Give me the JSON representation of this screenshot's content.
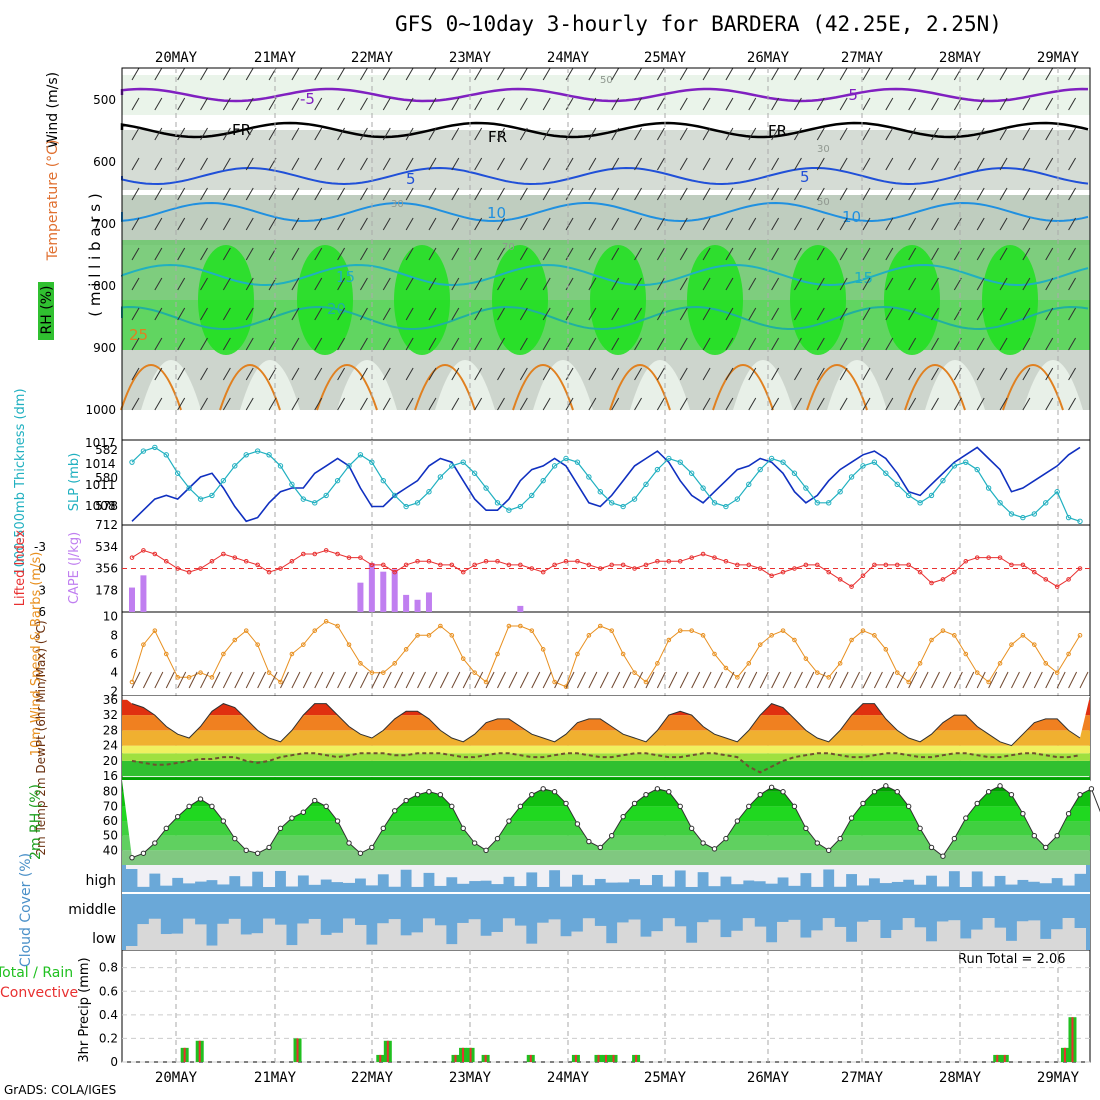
{
  "title": "GFS 0~10day 3-hourly for BARDERA (42.25E, 2.25N)",
  "credit": "GrADS: COLA/IGES",
  "run_total": "Run Total = 2.06",
  "colors": {
    "temp_contour": "#2a6ad6",
    "rh_green": "#00e000",
    "cape": "#c07ff0",
    "lifted": "#e83030",
    "wind10": "#e89020",
    "thickness": "#1030c0",
    "slp": "#20b0c0",
    "cloud": "#6aa8d8",
    "precip_total": "#20c020",
    "precip_conv": "#e83030"
  },
  "chart_data": [
    {
      "type": "heatmap",
      "name": "upper-air",
      "ylabel": "( m i l l i b a r s )",
      "side_labels": [
        "RH (%)",
        "Temperature (°C)",
        "Wind (m/s)"
      ],
      "y_ticks": [
        500,
        600,
        700,
        800,
        900,
        1000
      ],
      "x_ticks": [
        "20MAY",
        "21MAY",
        "22MAY",
        "23MAY",
        "24MAY",
        "25MAY",
        "26MAY",
        "27MAY",
        "28MAY",
        "29MAY"
      ],
      "contour_labels": [
        "-5",
        "FR",
        "5",
        "10",
        "15",
        "20",
        "25",
        "50",
        "30",
        "70"
      ]
    },
    {
      "type": "line",
      "name": "thickness-slp",
      "ylabel_left": "1000-500mb Thickness (dm)",
      "ylabel_right": "SLP (mb)",
      "left_ticks": [
        582,
        580,
        578
      ],
      "right_ticks": [
        1017,
        1014,
        1011,
        1008
      ],
      "series": [
        {
          "name": "1000-500mb Thickness (dm)",
          "values": [
            1006.5,
            1008,
            1009.5,
            1010,
            1009.5,
            1011,
            1012.5,
            1013,
            1011,
            1008.5,
            1006.5,
            1007,
            1009,
            1010.5,
            1011,
            1011,
            1013,
            1014,
            1015,
            1014,
            1011,
            1008.5,
            1008.5,
            1010,
            1011,
            1012,
            1014,
            1015,
            1014.5,
            1012,
            1009.5,
            1008,
            1008,
            1009.5,
            1012,
            1013.5,
            1014,
            1015,
            1014,
            1011.5,
            1009,
            1008.5,
            1010,
            1012,
            1014,
            1015,
            1016,
            1014.5,
            1012,
            1010,
            1009,
            1010.5,
            1012,
            1013.5,
            1014,
            1015,
            1014.5,
            1013,
            1010.5,
            1009,
            1010,
            1012,
            1013.5,
            1014.5,
            1015.5,
            1016,
            1015,
            1013,
            1010.5,
            1010,
            1011.5,
            1013,
            1014.5,
            1015.5,
            1016.5,
            1015,
            1013.5,
            1010.5,
            1011,
            1012,
            1013,
            1014,
            1015.5,
            1016.5
          ]
        },
        {
          "name": "SLP (mb)",
          "values": [
            1014.5,
            1016,
            1016.5,
            1015.5,
            1013,
            1011,
            1009.5,
            1010,
            1012,
            1014,
            1015.5,
            1016,
            1015.5,
            1014,
            1011.5,
            1009.5,
            1009,
            1010,
            1012,
            1014,
            1015.5,
            1014.5,
            1012,
            1010,
            1008.5,
            1009,
            1010.5,
            1012.5,
            1014,
            1014.5,
            1013,
            1011,
            1009,
            1008,
            1008.5,
            1010,
            1012,
            1014,
            1015,
            1014.5,
            1012.5,
            1010.5,
            1009,
            1008.5,
            1009.5,
            1011.5,
            1013.5,
            1015,
            1014.5,
            1013,
            1011,
            1009,
            1008.5,
            1009.5,
            1011.5,
            1013.5,
            1015,
            1014.5,
            1013,
            1011,
            1009,
            1009,
            1010.5,
            1012.5,
            1014,
            1014.5,
            1013,
            1011.5,
            1010,
            1009,
            1010,
            1012,
            1014,
            1014.5,
            1013.5,
            1011,
            1009,
            1007.5,
            1007,
            1007.5,
            1009,
            1010.5,
            1007,
            1006.5
          ]
        }
      ]
    },
    {
      "type": "bar",
      "name": "cape-lifted",
      "ylabel_left": "Lifted Index",
      "ylabel_right": "CAPE (J/kg)",
      "left_ticks": [
        -3,
        0,
        3,
        6
      ],
      "right_ticks": [
        712,
        534,
        356,
        178
      ],
      "series": [
        {
          "name": "CAPE (J/kg)",
          "values": [
            200,
            300,
            0,
            0,
            0,
            0,
            0,
            0,
            0,
            0,
            0,
            0,
            0,
            0,
            0,
            0,
            0,
            0,
            0,
            0,
            240,
            400,
            330,
            350,
            140,
            100,
            160,
            0,
            0,
            0,
            0,
            0,
            0,
            0,
            50,
            0,
            0,
            0,
            0,
            0,
            0,
            0,
            0,
            0,
            0,
            0,
            0,
            0,
            0,
            0,
            0,
            0,
            0,
            0,
            0,
            0,
            0,
            0,
            0,
            0,
            0,
            0,
            0,
            0,
            0,
            0,
            0,
            0,
            0,
            0,
            0,
            0,
            0,
            0,
            0,
            0,
            0,
            0,
            0,
            0,
            0,
            0,
            0,
            0
          ]
        },
        {
          "name": "Lifted Index",
          "values": [
            -1.5,
            -2.5,
            -2,
            -1,
            0,
            0.5,
            0,
            -1,
            -2,
            -1.5,
            -1,
            -0.5,
            0.5,
            0,
            -1,
            -2,
            -2,
            -2.5,
            -2,
            -1.5,
            -1.5,
            -0.5,
            -0.5,
            0.5,
            -0.5,
            -1,
            -1,
            -0.5,
            -0.5,
            0.5,
            -0.5,
            -1,
            -1,
            -0.5,
            -0.5,
            0,
            0.5,
            -0.5,
            -1,
            -1,
            -0.5,
            0,
            -0.5,
            -0.5,
            0,
            -0.5,
            -1,
            -1,
            -1,
            -1.5,
            -2,
            -1.5,
            -1,
            -0.5,
            -0.5,
            0,
            1,
            0.5,
            0,
            -0.5,
            -0.5,
            0.5,
            1.5,
            2.5,
            1,
            -0.5,
            -0.5,
            -0.5,
            -0.5,
            0.5,
            2,
            1.5,
            0.5,
            -1,
            -1.5,
            -1.5,
            -1.5,
            -0.5,
            -0.5,
            0.5,
            1.5,
            2.5,
            1.5,
            0
          ]
        }
      ]
    },
    {
      "type": "line",
      "name": "wind10m",
      "ylabel": "10m Wind Speed & Barbs (m/s)",
      "y_ticks": [
        10,
        8,
        6,
        4,
        2
      ],
      "series": [
        {
          "name": "10m Wind Speed",
          "values": [
            3,
            7,
            8.5,
            6,
            3.5,
            3.5,
            4,
            3.5,
            6,
            7.5,
            8.5,
            7,
            4,
            3,
            6,
            7,
            8.5,
            9.5,
            9,
            7,
            5,
            4,
            4,
            5,
            6.5,
            8,
            8,
            9,
            8,
            5.5,
            4,
            3,
            6,
            9,
            9,
            8.5,
            6.5,
            3,
            2.5,
            6,
            8,
            9,
            8.5,
            6,
            4,
            3,
            5,
            7.5,
            8.5,
            8.5,
            8,
            6,
            4.5,
            3.5,
            5,
            7,
            8,
            8.5,
            7.5,
            5.5,
            4,
            3.5,
            5,
            7.5,
            8.5,
            8,
            6.5,
            4,
            3,
            5,
            7.5,
            8.5,
            8,
            6,
            4,
            3,
            5,
            7,
            8,
            7,
            5,
            4,
            6,
            8
          ]
        }
      ]
    },
    {
      "type": "area",
      "name": "temp2m",
      "ylabel": "2m Temp 2m DewPt (6hr Min/Max) (°C)",
      "y_ticks": [
        36,
        32,
        28,
        24,
        20,
        16
      ],
      "series": [
        {
          "name": "2m Temp",
          "values": [
            35,
            34,
            32,
            29,
            27,
            26,
            29,
            33,
            35,
            34,
            31,
            28,
            26,
            25,
            28,
            32,
            35,
            35,
            32,
            29,
            27,
            26,
            28,
            31,
            33,
            33,
            31,
            28,
            26,
            25,
            27,
            30,
            31,
            31,
            29,
            27,
            26,
            25,
            27,
            30,
            31,
            31,
            29,
            27,
            26,
            25,
            28,
            32,
            33,
            32,
            29,
            27,
            26,
            25,
            28,
            32,
            35,
            34,
            31,
            28,
            26,
            25,
            28,
            32,
            35,
            35,
            31,
            28,
            26,
            25,
            27,
            30,
            32,
            32,
            29,
            27,
            25,
            24,
            27,
            30,
            31,
            31,
            28,
            26
          ]
        },
        {
          "name": "2m DewPt",
          "values": [
            20,
            19.5,
            19,
            19,
            19.5,
            20,
            20.5,
            20.5,
            21,
            21,
            20,
            19.5,
            20,
            21,
            21.5,
            22,
            22,
            21.5,
            21,
            21.5,
            22,
            22,
            22,
            21.5,
            21.5,
            22,
            22,
            22,
            21.5,
            21,
            21,
            21.5,
            22,
            22,
            21.5,
            21,
            21,
            21.5,
            22,
            22,
            21.5,
            21,
            21,
            21.5,
            22,
            22,
            21.5,
            21,
            21,
            21.5,
            22,
            22,
            21.5,
            21,
            18.5,
            17,
            18.5,
            20,
            21,
            21.5,
            22,
            22,
            21.5,
            21,
            21,
            21.5,
            22,
            22,
            21.5,
            21,
            21,
            21.5,
            22,
            22,
            21.5,
            21,
            21,
            21.5,
            22,
            22,
            21.5,
            21,
            21,
            21.5
          ]
        }
      ]
    },
    {
      "type": "area",
      "name": "rh2m",
      "ylabel": "2m RH (%)",
      "y_ticks": [
        80,
        70,
        60,
        50,
        40
      ],
      "series": [
        {
          "name": "2m RH",
          "values": [
            35,
            38,
            45,
            55,
            63,
            70,
            75,
            70,
            60,
            48,
            40,
            38,
            42,
            55,
            62,
            66,
            74,
            70,
            60,
            45,
            38,
            42,
            55,
            67,
            74,
            78,
            80,
            78,
            70,
            55,
            45,
            40,
            48,
            60,
            70,
            78,
            82,
            80,
            72,
            58,
            46,
            42,
            50,
            63,
            72,
            78,
            82,
            80,
            70,
            55,
            45,
            41,
            48,
            60,
            70,
            78,
            83,
            80,
            70,
            55,
            45,
            40,
            48,
            62,
            72,
            80,
            84,
            80,
            70,
            55,
            42,
            36,
            48,
            62,
            72,
            80,
            84,
            78,
            65,
            50,
            42,
            50,
            65,
            78,
            82,
            62
          ]
        }
      ]
    },
    {
      "type": "bar",
      "name": "cloud",
      "ylabel": "Cloud Cover (%)",
      "level_labels": [
        "high",
        "middle",
        "low"
      ]
    },
    {
      "type": "bar",
      "name": "precip",
      "ylabel": "3hr Precip (mm)",
      "side_labels": [
        "Total / Rain",
        "Convective"
      ],
      "y_ticks": [
        0.8,
        0.6,
        0.4,
        0.2,
        0
      ],
      "series": [
        {
          "name": "Total / Rain",
          "values": [
            0,
            0,
            0,
            0,
            0,
            0,
            0,
            0.12,
            0,
            0.18,
            0,
            0,
            0,
            0,
            0,
            0,
            0,
            0,
            0,
            0,
            0,
            0,
            0.2,
            0,
            0,
            0,
            0,
            0,
            0,
            0,
            0,
            0,
            0,
            0.06,
            0.18,
            0,
            0,
            0,
            0,
            0,
            0,
            0,
            0,
            0.06,
            0.12,
            0.12,
            0,
            0.06,
            0,
            0,
            0,
            0,
            0,
            0.06,
            0,
            0,
            0,
            0,
            0,
            0.06,
            0,
            0,
            0.06,
            0.06,
            0.06,
            0,
            0,
            0.06,
            0,
            0,
            0,
            0,
            0,
            0,
            0,
            0,
            0,
            0,
            0,
            0,
            0,
            0,
            0,
            0,
            0,
            0,
            0,
            0,
            0,
            0,
            0,
            0,
            0,
            0,
            0,
            0,
            0,
            0,
            0,
            0,
            0,
            0,
            0,
            0,
            0,
            0,
            0,
            0,
            0,
            0,
            0,
            0,
            0,
            0,
            0,
            0.06,
            0.06,
            0,
            0,
            0,
            0,
            0,
            0,
            0,
            0.12,
            0.38,
            0
          ]
        }
      ]
    }
  ]
}
